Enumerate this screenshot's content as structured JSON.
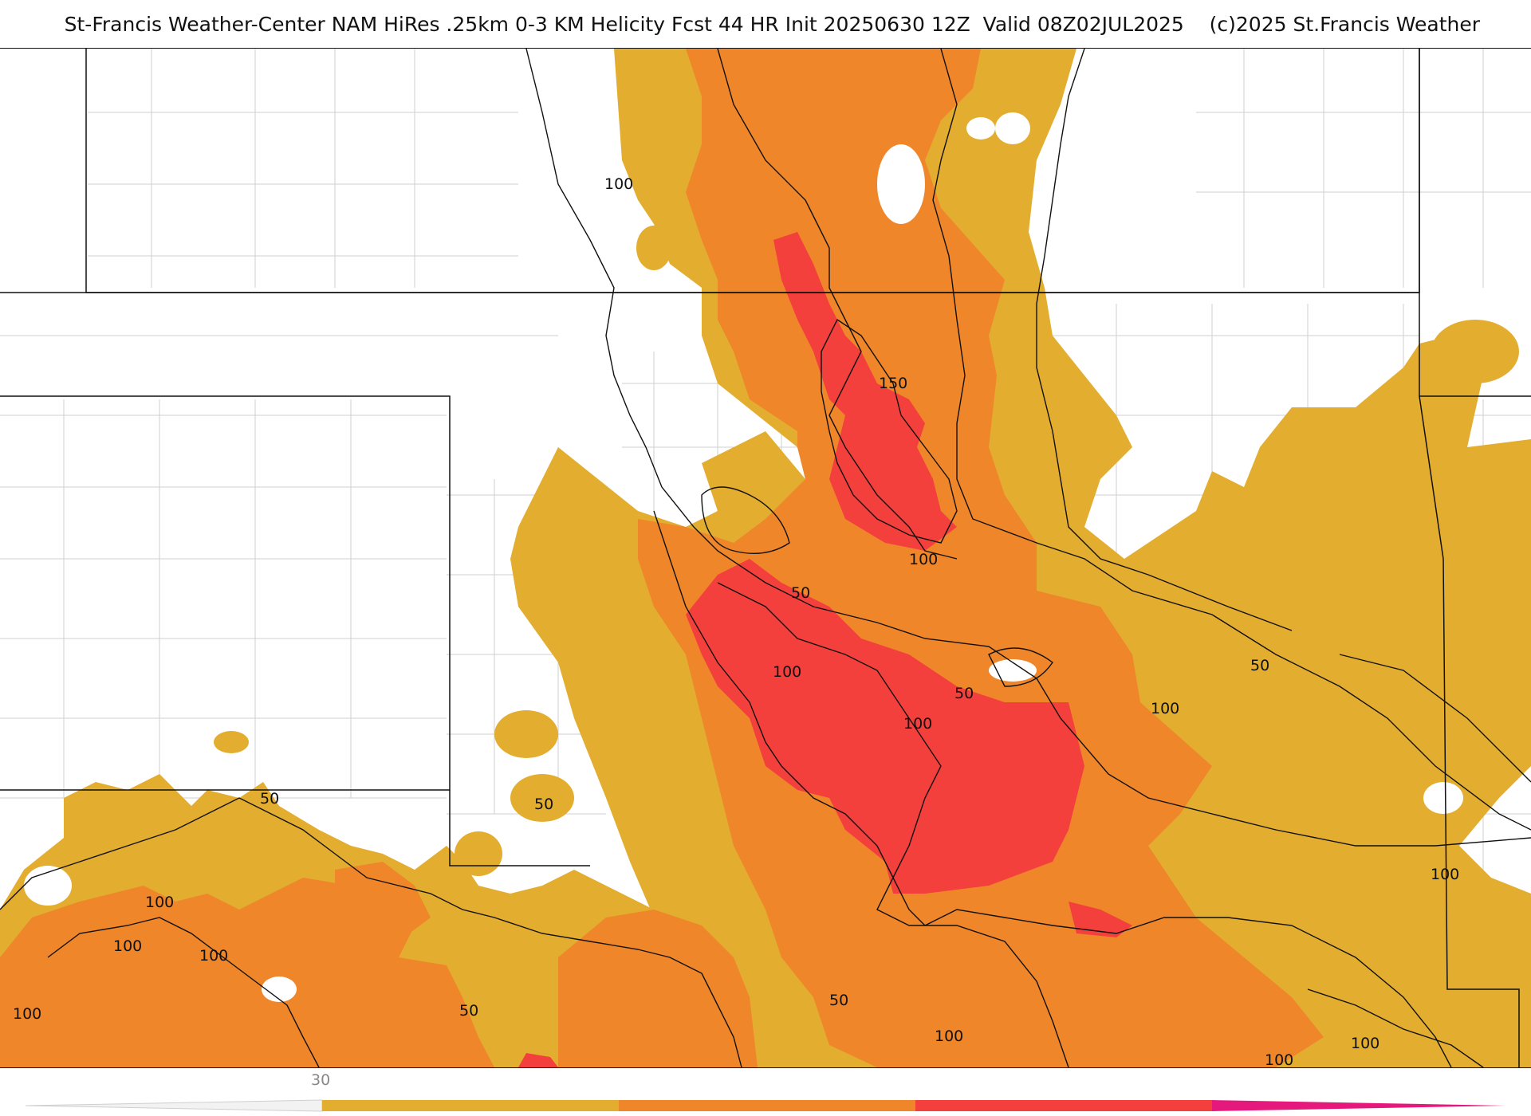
{
  "header": {
    "title": "St-Francis Weather-Center NAM HiRes .25km 0-3 KM Helicity Fcst 44 HR Init 20250630 12Z  Valid 08Z02JUL2025    (c)2025 St.Francis Weather"
  },
  "colors": {
    "band_50_100": "#e3ad2f",
    "band_100_150": "#ef862a",
    "band_150_200": "#f4403d",
    "band_200_plus": "#e5197c",
    "boundary": "#111111",
    "county_lines": "#cfcfcf"
  },
  "legend": {
    "tick_label": "30",
    "bands": [
      "#e3ad2f",
      "#ef862a",
      "#f4403d",
      "#e5197c"
    ]
  },
  "contour_labels": [
    {
      "id": "label-100-a",
      "text": "100"
    },
    {
      "id": "label-150",
      "text": "150"
    },
    {
      "id": "label-100-b",
      "text": "100"
    },
    {
      "id": "label-50-a",
      "text": "50"
    },
    {
      "id": "label-100-c",
      "text": "100"
    },
    {
      "id": "label-50-b",
      "text": "50"
    },
    {
      "id": "label-100-d",
      "text": "100"
    },
    {
      "id": "label-50-c",
      "text": "50"
    },
    {
      "id": "label-100-e",
      "text": "100"
    },
    {
      "id": "label-50-d",
      "text": "50"
    },
    {
      "id": "label-50-e",
      "text": "50"
    },
    {
      "id": "label-100-f",
      "text": "100"
    },
    {
      "id": "label-100-g",
      "text": "100"
    },
    {
      "id": "label-100-h",
      "text": "100"
    },
    {
      "id": "label-100-i",
      "text": "100"
    },
    {
      "id": "label-50-f",
      "text": "50"
    },
    {
      "id": "label-50-g",
      "text": "50"
    },
    {
      "id": "label-100-j",
      "text": "100"
    },
    {
      "id": "label-100-k",
      "text": "100"
    },
    {
      "id": "label-100-l",
      "text": "100"
    },
    {
      "id": "label-100-m",
      "text": "100"
    }
  ]
}
